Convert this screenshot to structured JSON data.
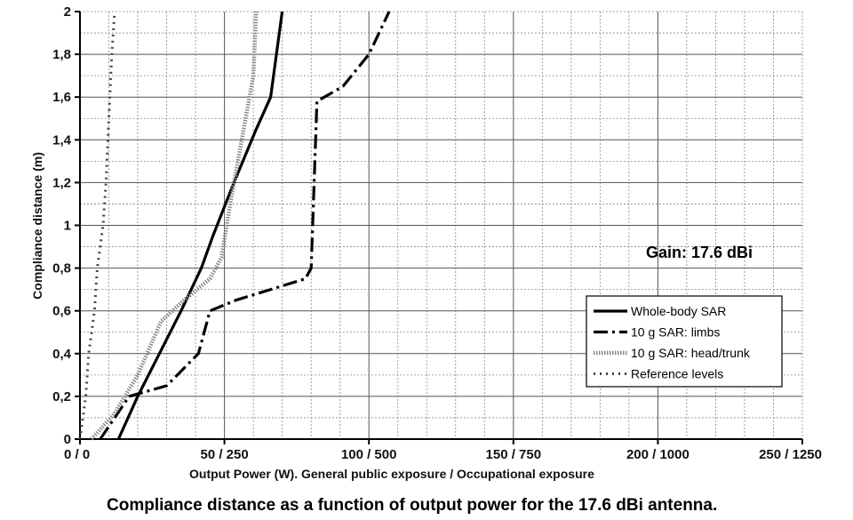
{
  "chart_data": {
    "type": "line",
    "title": "",
    "caption": "Compliance distance as a function of output power for the 17.6 dBi antenna.",
    "xlabel": "Output Power (W). General public exposure / Occupational exposure",
    "ylabel": "Compliance distance (m)",
    "annotation": "Gain: 17.6 dBi",
    "xlim": [
      0,
      250
    ],
    "ylim": [
      0,
      2
    ],
    "x_ticks": [
      {
        "value": 0,
        "label": "0 / 0"
      },
      {
        "value": 50,
        "label": "50 / 250"
      },
      {
        "value": 100,
        "label": "100 / 500"
      },
      {
        "value": 150,
        "label": "150 / 750"
      },
      {
        "value": 200,
        "label": "200 / 1000"
      },
      {
        "value": 250,
        "label": "250 / 1250"
      }
    ],
    "y_ticks": [
      {
        "value": 0,
        "label": "0"
      },
      {
        "value": 0.2,
        "label": "0,2"
      },
      {
        "value": 0.4,
        "label": "0,4"
      },
      {
        "value": 0.6,
        "label": "0,6"
      },
      {
        "value": 0.8,
        "label": "0,8"
      },
      {
        "value": 1.0,
        "label": "1"
      },
      {
        "value": 1.2,
        "label": "1,2"
      },
      {
        "value": 1.4,
        "label": "1,4"
      },
      {
        "value": 1.6,
        "label": "1,6"
      },
      {
        "value": 1.8,
        "label": "1,8"
      },
      {
        "value": 2.0,
        "label": "2"
      }
    ],
    "grid": true,
    "legend_position": "lower-right",
    "series": [
      {
        "name": "Whole-body SAR",
        "style": "solid",
        "color": "#000000",
        "x": [
          13.3,
          20,
          27.5,
          35,
          42,
          46,
          53.3,
          61,
          66,
          70
        ],
        "y": [
          0,
          0.2,
          0.4,
          0.6,
          0.8,
          0.95,
          1.2,
          1.45,
          1.6,
          2.0
        ]
      },
      {
        "name": "10 g SAR: limbs",
        "style": "dash-dot",
        "color": "#000000",
        "x": [
          7,
          17,
          30,
          41,
          45,
          54,
          78,
          80,
          82,
          91,
          100,
          107
        ],
        "y": [
          0,
          0.2,
          0.25,
          0.4,
          0.6,
          0.65,
          0.75,
          0.8,
          1.58,
          1.65,
          1.8,
          2.0
        ]
      },
      {
        "name": "10 g SAR: head/trunk",
        "style": "hatched",
        "color": "#888888",
        "x": [
          4,
          12,
          20,
          28,
          36,
          45,
          49,
          52,
          60,
          61
        ],
        "y": [
          0,
          0.12,
          0.3,
          0.55,
          0.65,
          0.75,
          0.85,
          1.1,
          1.7,
          2.0
        ]
      },
      {
        "name": "Reference levels",
        "style": "dotted",
        "color": "#444444",
        "x": [
          0,
          2,
          3,
          5,
          6,
          8,
          9,
          10,
          11,
          12
        ],
        "y": [
          0,
          0.2,
          0.4,
          0.6,
          0.8,
          1.0,
          1.2,
          1.5,
          1.8,
          2.0
        ]
      }
    ]
  }
}
